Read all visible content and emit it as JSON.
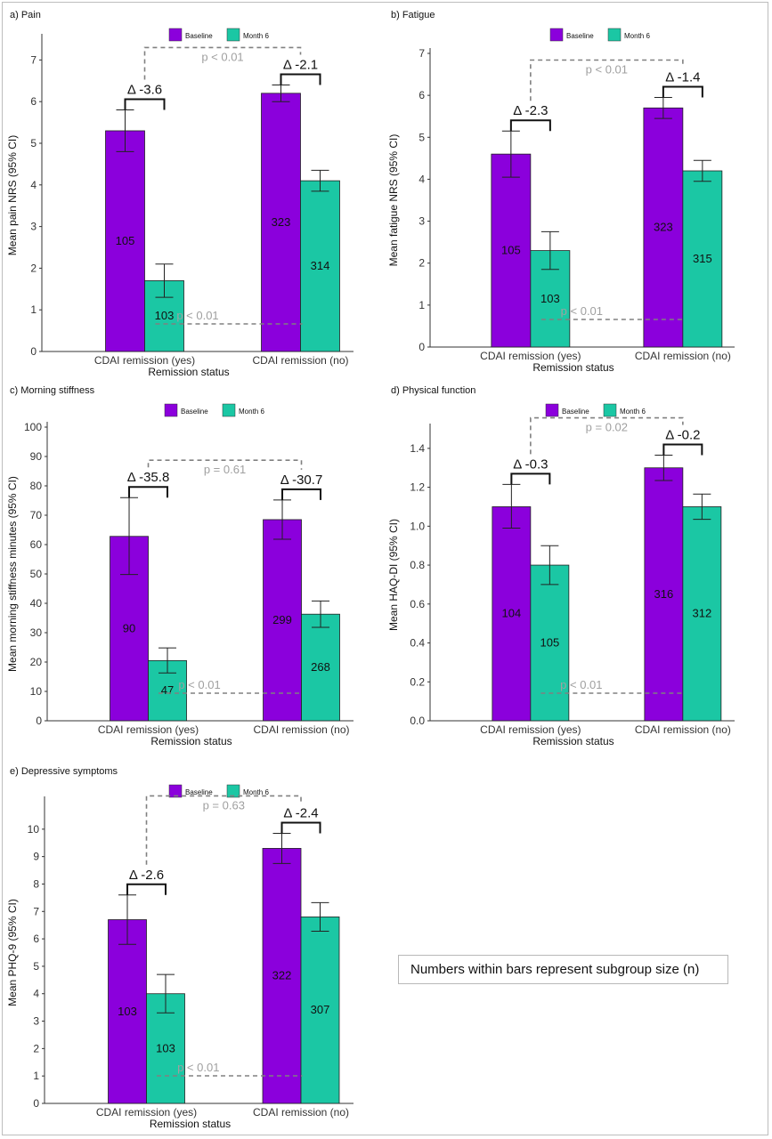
{
  "colors": {
    "baseline": "#8B00DC",
    "month6": "#1BC7A4",
    "dash": "#808080",
    "pcolor": "#a0a0a0"
  },
  "legend": {
    "baseline": "Baseline",
    "month6": "Month 6"
  },
  "note": "Numbers within bars represent subgroup size (n)",
  "chart_data": [
    {
      "type": "bar",
      "title": "a) Pain",
      "xlabel": "Remission status",
      "ylabel": "Mean pain NRS (95% CI)",
      "ylim": [
        0,
        7.5
      ],
      "yticks": [
        "0",
        "1",
        "2",
        "3",
        "4",
        "5",
        "6",
        "7"
      ],
      "categories": [
        "CDAI remission (yes)",
        "CDAI remission (no)"
      ],
      "series": [
        {
          "name": "Baseline",
          "values": [
            5.3,
            6.2
          ],
          "ci_low": [
            4.8,
            6.0
          ],
          "ci_high": [
            5.8,
            6.4
          ],
          "n": [
            "105",
            "323"
          ]
        },
        {
          "name": "Month 6",
          "values": [
            1.7,
            4.1
          ],
          "ci_low": [
            1.3,
            3.85
          ],
          "ci_high": [
            2.1,
            4.35
          ],
          "n": [
            "103",
            "314"
          ]
        }
      ],
      "deltas": [
        "Δ -3.6",
        "Δ -2.1"
      ],
      "p_between_baseline": "p < 0.01",
      "p_between_month6": "p < 0.01"
    },
    {
      "type": "bar",
      "title": "b) Fatigue",
      "xlabel": "Remission status",
      "ylabel": "Mean fatigue NRS (95% CI)",
      "ylim": [
        0,
        7
      ],
      "yticks": [
        "0",
        "1",
        "2",
        "3",
        "4",
        "5",
        "6",
        "7"
      ],
      "categories": [
        "CDAI remission (yes)",
        "CDAI remission (no)"
      ],
      "series": [
        {
          "name": "Baseline",
          "values": [
            4.6,
            5.7
          ],
          "ci_low": [
            4.05,
            5.45
          ],
          "ci_high": [
            5.15,
            5.95
          ],
          "n": [
            "105",
            "323"
          ]
        },
        {
          "name": "Month 6",
          "values": [
            2.3,
            4.2
          ],
          "ci_low": [
            1.85,
            3.95
          ],
          "ci_high": [
            2.75,
            4.45
          ],
          "n": [
            "103",
            "315"
          ]
        }
      ],
      "deltas": [
        "Δ -2.3",
        "Δ -1.4"
      ],
      "p_between_baseline": "p < 0.01",
      "p_between_month6": "p < 0.01"
    },
    {
      "type": "bar",
      "title": "c) Morning stiffness",
      "xlabel": "Remission status",
      "ylabel": "Mean morning stiffness minutes (95% CI)",
      "ylim": [
        0,
        100
      ],
      "yticks": [
        "0",
        "10",
        "20",
        "30",
        "40",
        "50",
        "60",
        "70",
        "80",
        "90",
        "100"
      ],
      "categories": [
        "CDAI remission (yes)",
        "CDAI remission (no)"
      ],
      "series": [
        {
          "name": "Baseline",
          "values": [
            62.8,
            68.5
          ],
          "ci_low": [
            49.8,
            61.8
          ],
          "ci_high": [
            76.0,
            75.2
          ],
          "n": [
            "90",
            "299"
          ]
        },
        {
          "name": "Month 6",
          "values": [
            20.5,
            36.3
          ],
          "ci_low": [
            16.3,
            31.8
          ],
          "ci_high": [
            24.8,
            40.8
          ],
          "n": [
            "47",
            "268"
          ]
        }
      ],
      "deltas": [
        "Δ -35.8",
        "Δ -30.7"
      ],
      "p_between_baseline": "p = 0.61",
      "p_between_month6": "p < 0.01"
    },
    {
      "type": "bar",
      "title": "d) Physical function",
      "xlabel": "Remission status",
      "ylabel": "Mean HAQ-DI (95% CI)",
      "ylim": [
        0,
        1.5
      ],
      "yticks": [
        "0.0",
        "0.2",
        "0.4",
        "0.6",
        "0.8",
        "1.0",
        "1.2",
        "1.4"
      ],
      "categories": [
        "CDAI remission (yes)",
        "CDAI remission (no)"
      ],
      "series": [
        {
          "name": "Baseline",
          "values": [
            1.1,
            1.3
          ],
          "ci_low": [
            0.99,
            1.235
          ],
          "ci_high": [
            1.215,
            1.365
          ],
          "n": [
            "104",
            "316"
          ]
        },
        {
          "name": "Month 6",
          "values": [
            0.8,
            1.1
          ],
          "ci_low": [
            0.7,
            1.035
          ],
          "ci_high": [
            0.9,
            1.165
          ],
          "n": [
            "105",
            "312"
          ]
        }
      ],
      "deltas": [
        "Δ -0.3",
        "Δ -0.2"
      ],
      "p_between_baseline": "p = 0.02",
      "p_between_month6": "p < 0.01"
    },
    {
      "type": "bar",
      "title": "e) Depressive symptoms",
      "xlabel": "Remission status",
      "ylabel": "Mean PHQ-9 (95% CI)",
      "ylim": [
        0,
        11
      ],
      "yticks": [
        "0",
        "1",
        "2",
        "3",
        "4",
        "5",
        "6",
        "7",
        "8",
        "9",
        "10"
      ],
      "categories": [
        "CDAI remission (yes)",
        "CDAI remission (no)"
      ],
      "series": [
        {
          "name": "Baseline",
          "values": [
            6.7,
            9.3
          ],
          "ci_low": [
            5.8,
            8.75
          ],
          "ci_high": [
            7.6,
            9.85
          ],
          "n": [
            "103",
            "322"
          ]
        },
        {
          "name": "Month 6",
          "values": [
            4.0,
            6.8
          ],
          "ci_low": [
            3.3,
            6.28
          ],
          "ci_high": [
            4.7,
            7.32
          ],
          "n": [
            "103",
            "307"
          ]
        }
      ],
      "deltas": [
        "Δ -2.6",
        "Δ -2.4"
      ],
      "p_between_baseline": "p = 0.63",
      "p_between_month6": "p < 0.01"
    }
  ]
}
